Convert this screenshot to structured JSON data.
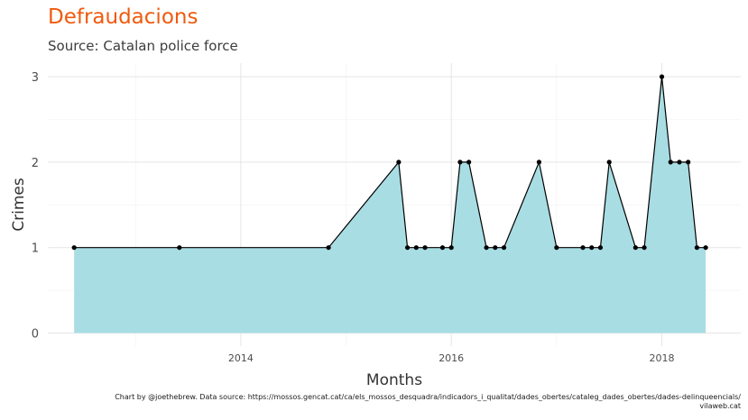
{
  "header": {
    "title": "Defraudacions",
    "subtitle": "Source: Catalan police force"
  },
  "caption": {
    "line1": "Chart by @joethebrew. Data source: https://mossos.gencat.cat/ca/els_mossos_desquadra/indicadors_i_qualitat/dades_obertes/cataleg_dades_obertes/dades-delinqueencials/",
    "line2": "vilaweb.cat"
  },
  "colors": {
    "title": "#f05a0e",
    "area_fill": "#a9dde4",
    "line": "#000000",
    "grid": "#e5e5e5"
  },
  "chart_data": {
    "type": "area",
    "xlabel": "Months",
    "ylabel": "Crimes",
    "x_ticks": [
      "2014",
      "2016",
      "2018"
    ],
    "y_ticks": [
      0,
      1,
      2,
      3
    ],
    "ylim": [
      0,
      3
    ],
    "xlim": [
      "2012-03",
      "2018-10"
    ],
    "grid": true,
    "legend": "none",
    "x": [
      "2012-06",
      "2013-06",
      "2014-11",
      "2015-07",
      "2015-08",
      "2015-09",
      "2015-10",
      "2015-12",
      "2016-01",
      "2016-02",
      "2016-03",
      "2016-05",
      "2016-06",
      "2016-07",
      "2016-11",
      "2017-01",
      "2017-04",
      "2017-05",
      "2017-06",
      "2017-07",
      "2017-10",
      "2017-11",
      "2018-01",
      "2018-02",
      "2018-03",
      "2018-04",
      "2018-05",
      "2018-06"
    ],
    "values": [
      1,
      1,
      1,
      2,
      1,
      1,
      1,
      1,
      1,
      2,
      2,
      1,
      1,
      1,
      2,
      1,
      1,
      1,
      1,
      2,
      1,
      1,
      3,
      2,
      2,
      2,
      1,
      1
    ]
  }
}
